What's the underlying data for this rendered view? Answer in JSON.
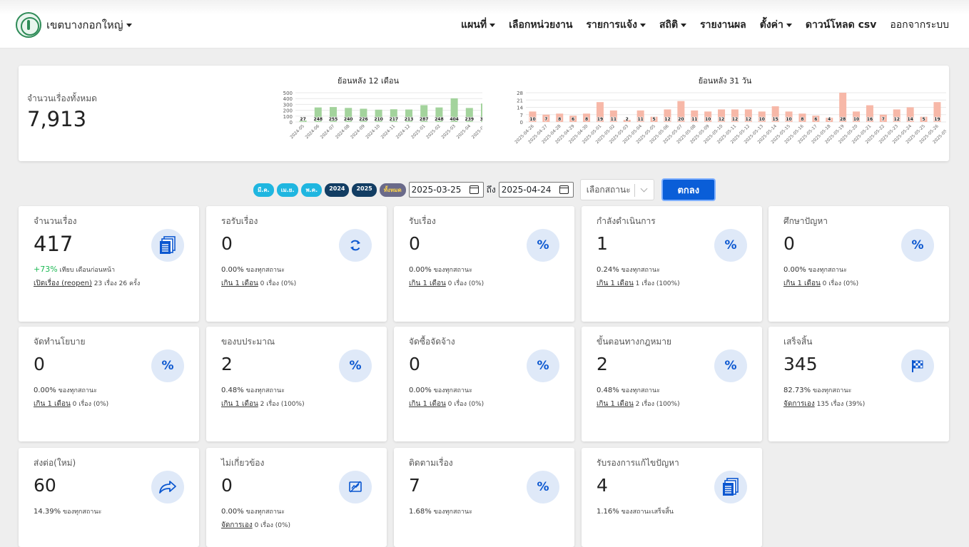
{
  "brand": {
    "name": "เขตบางกอกใหญ่"
  },
  "nav": [
    {
      "label": "แผนที่",
      "dropdown": true
    },
    {
      "label": "เลือกหน่วยงาน",
      "dropdown": false
    },
    {
      "label": "รายการแจ้ง",
      "dropdown": true
    },
    {
      "label": "สถิติ",
      "dropdown": true
    },
    {
      "label": "รายงานผล",
      "dropdown": false
    },
    {
      "label": "ตั้งค่า",
      "dropdown": true
    },
    {
      "label": "ดาวน์โหลด csv",
      "dropdown": false
    },
    {
      "label": "ออกจากระบบ",
      "dropdown": false
    }
  ],
  "summary": {
    "label": "จำนวนเรื่องทั้งหมด",
    "value": "7,913"
  },
  "chart_data": [
    {
      "type": "bar",
      "title": "ย้อนหลัง 12 เดือน",
      "categories": [
        "2024-05",
        "2024-06",
        "2024-07",
        "2024-08",
        "2024-09",
        "2024-10",
        "2024-11",
        "2024-12",
        "2025-01",
        "2025-02",
        "2025-03",
        "2025-04",
        "2025-05"
      ],
      "values": [
        27,
        248,
        255,
        240,
        226,
        210,
        217,
        213,
        287,
        248,
        404,
        239,
        315
      ],
      "yticks": [
        0,
        100,
        200,
        300,
        400,
        500
      ],
      "ylim": [
        0,
        500
      ],
      "color": "#a3d39c",
      "grid": true
    },
    {
      "type": "bar",
      "title": "ย้อนหลัง 31 วัน",
      "categories": [
        "2025-04-26",
        "2025-04-27",
        "2025-04-28",
        "2025-04-29",
        "2025-04-30",
        "2025-05-01",
        "2025-05-02",
        "2025-05-03",
        "2025-05-04",
        "2025-05-05",
        "2025-05-06",
        "2025-05-07",
        "2025-05-08",
        "2025-05-09",
        "2025-05-10",
        "2025-05-11",
        "2025-05-12",
        "2025-05-13",
        "2025-05-14",
        "2025-05-15",
        "2025-05-16",
        "2025-05-17",
        "2025-05-18",
        "2025-05-19",
        "2025-05-20",
        "2025-05-21",
        "2025-05-22",
        "2025-05-23",
        "2025-05-24",
        "2025-05-25",
        "2025-05-26",
        "2025-05-27"
      ],
      "values": [
        10,
        7,
        8,
        6,
        8,
        19,
        11,
        2,
        11,
        5,
        12,
        20,
        11,
        10,
        12,
        12,
        12,
        10,
        15,
        10,
        8,
        6,
        4,
        28,
        10,
        16,
        7,
        12,
        14,
        5,
        19,
        10
      ],
      "yticks": [
        0,
        7,
        14,
        21,
        28
      ],
      "ylim": [
        0,
        28
      ],
      "color": "#f7b8a8",
      "grid": true
    }
  ],
  "filters": {
    "pills": [
      {
        "label": "มี.ค.",
        "style": "cyan"
      },
      {
        "label": "เม.ย.",
        "style": "cyan"
      },
      {
        "label": "พ.ค.",
        "style": "cyan"
      },
      {
        "label": "2024",
        "style": "navy"
      },
      {
        "label": "2025",
        "style": "navy"
      },
      {
        "label": "ทั้งหมด",
        "style": "all"
      }
    ],
    "date_from": "2025-03-25",
    "to_label": "ถึง",
    "date_to": "2025-04-24",
    "status_placeholder": "เลือกสถานะ",
    "submit_label": "ตกลง"
  },
  "cards": [
    {
      "title": "จำนวนเรื่อง",
      "value": "417",
      "icon": "documents-icon",
      "growth": "+73%",
      "growth_text": "เทียบ เดือนก่อนหน้า",
      "link": "เปิดเรื่อง (reopen)",
      "link_text": "23 เรื่อง 26 ครั้ง"
    },
    {
      "title": "รอรับเรื่อง",
      "value": "0",
      "icon": "refresh-icon",
      "pct": "0.00%",
      "pct_text": "ของทุกสถานะ",
      "link": "เกิน 1 เดือน",
      "link_text": "0 เรื่อง (0%)"
    },
    {
      "title": "รับเรื่อง",
      "value": "0",
      "icon": "percent-icon",
      "pct": "0.00%",
      "pct_text": "ของทุกสถานะ",
      "link": "เกิน 1 เดือน",
      "link_text": "0 เรื่อง (0%)"
    },
    {
      "title": "กำลังดำเนินการ",
      "value": "1",
      "icon": "percent-icon",
      "pct": "0.24%",
      "pct_text": "ของทุกสถานะ",
      "link": "เกิน 1 เดือน",
      "link_text": "1 เรื่อง (100%)"
    },
    {
      "title": "ศึกษาปัญหา",
      "value": "0",
      "icon": "percent-icon",
      "pct": "0.00%",
      "pct_text": "ของทุกสถานะ",
      "link": "เกิน 1 เดือน",
      "link_text": "0 เรื่อง (0%)"
    },
    {
      "title": "จัดทำนโยบาย",
      "value": "0",
      "icon": "percent-icon",
      "pct": "0.00%",
      "pct_text": "ของทุกสถานะ",
      "link": "เกิน 1 เดือน",
      "link_text": "0 เรื่อง (0%)"
    },
    {
      "title": "ของบประมาณ",
      "value": "2",
      "icon": "percent-icon",
      "pct": "0.48%",
      "pct_text": "ของทุกสถานะ",
      "link": "เกิน 1 เดือน",
      "link_text": "2 เรื่อง (100%)"
    },
    {
      "title": "จัดซื้อจัดจ้าง",
      "value": "0",
      "icon": "percent-icon",
      "pct": "0.00%",
      "pct_text": "ของทุกสถานะ",
      "link": "เกิน 1 เดือน",
      "link_text": "0 เรื่อง (0%)"
    },
    {
      "title": "ขั้นตอนทางกฎหมาย",
      "value": "2",
      "icon": "percent-icon",
      "pct": "0.48%",
      "pct_text": "ของทุกสถานะ",
      "link": "เกิน 1 เดือน",
      "link_text": "2 เรื่อง (100%)"
    },
    {
      "title": "เสร็จสิ้น",
      "value": "345",
      "icon": "checkered-flag-icon",
      "pct": "82.73%",
      "pct_text": "ของทุกสถานะ",
      "link": "จัดการเอง",
      "link_text": "135 เรื่อง (39%)"
    },
    {
      "title": "ส่งต่อ(ใหม่)",
      "value": "60",
      "icon": "forward-arrow-icon",
      "pct": "14.39%",
      "pct_text": "ของทุกสถานะ"
    },
    {
      "title": "ไม่เกี่ยวข้อง",
      "value": "0",
      "icon": "not-related-icon",
      "pct": "0.00%",
      "pct_text": "ของทุกสถานะ",
      "link": "จัดการเอง",
      "link_text": "0 เรื่อง (0%)"
    },
    {
      "title": "ติดตามเรื่อง",
      "value": "7",
      "icon": "percent-icon",
      "pct": "1.68%",
      "pct_text": "ของทุกสถานะ"
    },
    {
      "title": "รับรองการแก้ไขปัญหา",
      "value": "4",
      "icon": "documents-icon",
      "pct": "1.16%",
      "pct_text": "ของสถานะเสร็จสิ้น"
    }
  ]
}
